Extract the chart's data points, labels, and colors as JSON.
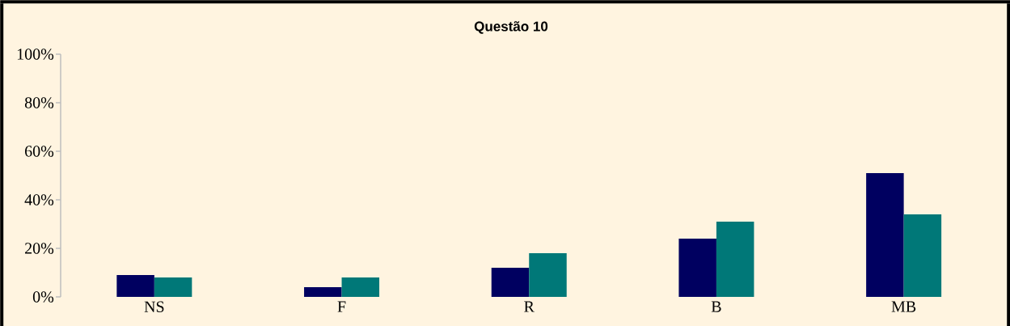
{
  "chart_data": {
    "type": "bar",
    "title": "Questão 10",
    "categories": [
      "NS",
      "F",
      "R",
      "B",
      "MB"
    ],
    "series": [
      {
        "color": "#000060",
        "values": [
          9,
          4,
          12,
          24,
          51
        ]
      },
      {
        "color": "#007878",
        "values": [
          8,
          8,
          18,
          31,
          34
        ]
      }
    ],
    "ylim": [
      0,
      100
    ],
    "yticks": [
      {
        "value": 0,
        "label": "0%"
      },
      {
        "value": 20,
        "label": "20%"
      },
      {
        "value": 40,
        "label": "40%"
      },
      {
        "value": 60,
        "label": "60%"
      },
      {
        "value": 80,
        "label": "80%"
      },
      {
        "value": 100,
        "label": "100%"
      }
    ],
    "grid": false
  }
}
